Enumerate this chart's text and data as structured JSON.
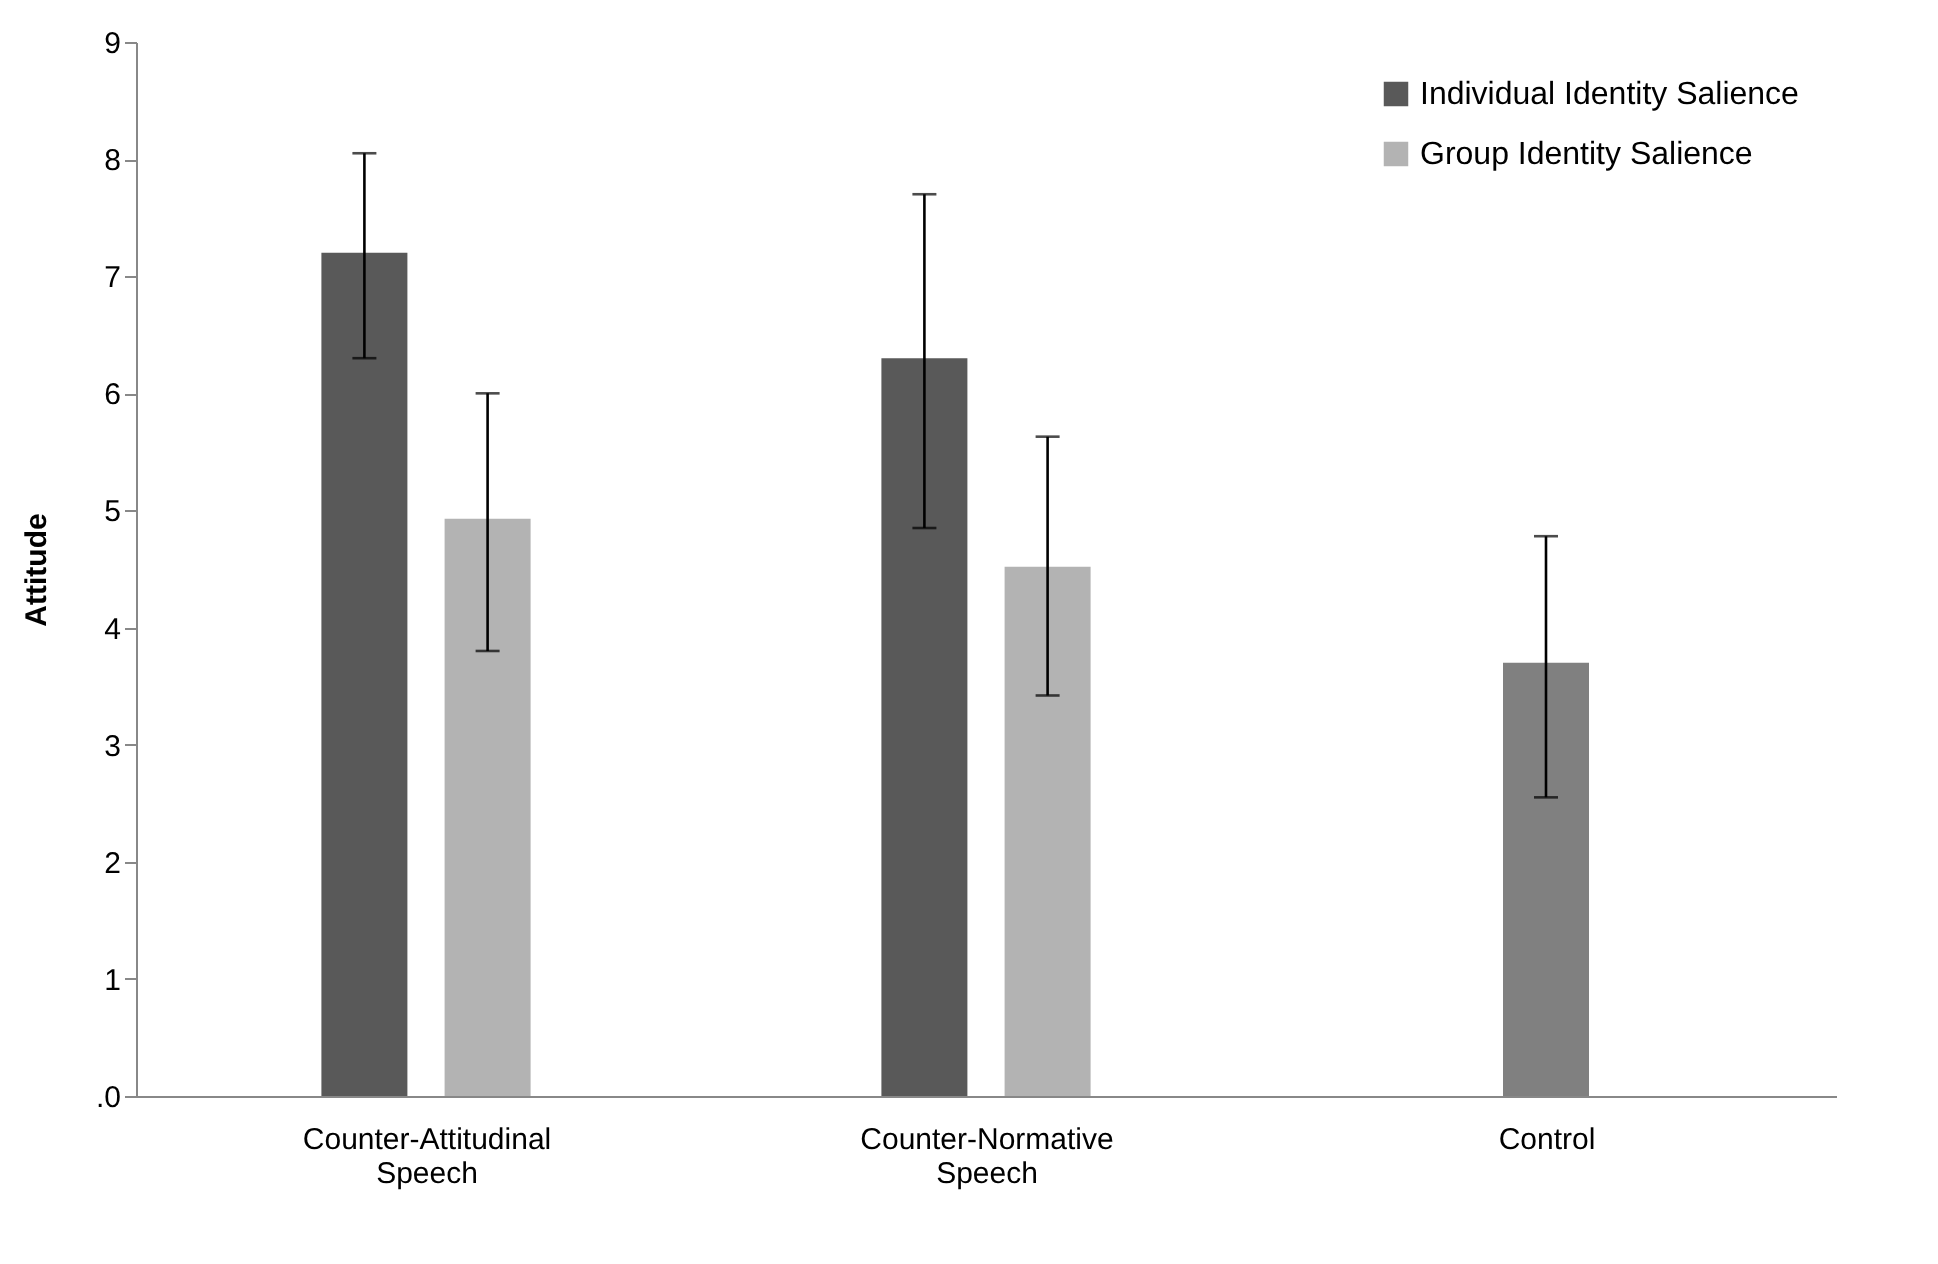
{
  "chart_data": {
    "type": "bar",
    "ylabel": "Attitude",
    "categories": [
      "Counter-Attitudinal Speech",
      "Counter-Normative Speech",
      "Control"
    ],
    "series": [
      {
        "name": "Individual Identity Salience",
        "color": "#595959",
        "values": [
          7.2,
          6.3,
          null
        ],
        "errors": [
          [
            6.3,
            8.05
          ],
          [
            4.85,
            7.7
          ],
          null
        ]
      },
      {
        "name": "Group Identity Salience",
        "color": "#b3b3b3",
        "values": [
          4.93,
          4.52,
          null
        ],
        "errors": [
          [
            3.8,
            6.0
          ],
          [
            3.42,
            5.63
          ],
          null
        ]
      },
      {
        "color": "#808080",
        "values": [
          null,
          null,
          3.7
        ],
        "errors": [
          null,
          null,
          [
            2.55,
            4.78
          ]
        ]
      }
    ],
    "ylim": [
      0,
      9
    ],
    "yticks": [
      {
        "value": 0,
        "label": ".0"
      },
      1,
      2,
      3,
      4,
      5,
      6,
      7,
      8,
      9
    ],
    "grid": false,
    "legend": "top right"
  }
}
